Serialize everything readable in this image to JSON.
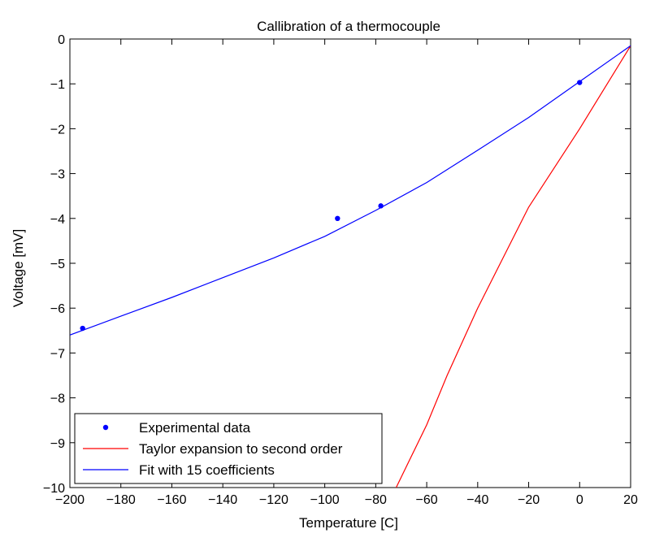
{
  "chart_data": {
    "type": "line",
    "title": "Callibration of a thermocouple",
    "xlabel": "Temperature [C]",
    "ylabel": "Voltage [mV]",
    "xlim": [
      -200,
      20
    ],
    "ylim": [
      -10,
      0
    ],
    "xticks": [
      -200,
      -180,
      -160,
      -140,
      -120,
      -100,
      -80,
      -60,
      -40,
      -20,
      0,
      20
    ],
    "yticks": [
      0,
      -1,
      -2,
      -3,
      -4,
      -5,
      -6,
      -7,
      -8,
      -9,
      -10
    ],
    "grid": false,
    "legend_position": "bottom-left",
    "series": [
      {
        "name": "Experimental data",
        "kind": "scatter",
        "color": "#0000ff",
        "x": [
          -195,
          -95,
          -78,
          0
        ],
        "y": [
          -6.45,
          -4.0,
          -3.72,
          -0.97
        ]
      },
      {
        "name": "Taylor expansion to second order",
        "kind": "line",
        "color": "#ff0000",
        "x": [
          -72,
          -60,
          -52,
          -40,
          -20,
          0,
          20
        ],
        "y": [
          -10.0,
          -8.6,
          -7.5,
          -6.0,
          -3.75,
          -2.0,
          -0.15
        ]
      },
      {
        "name": "Fit with 15 coefficients",
        "kind": "line",
        "color": "#0000ff",
        "x": [
          -200,
          -180,
          -160,
          -140,
          -120,
          -100,
          -80,
          -60,
          -40,
          -20,
          0,
          20
        ],
        "y": [
          -6.6,
          -6.18,
          -5.76,
          -5.32,
          -4.88,
          -4.4,
          -3.82,
          -3.2,
          -2.48,
          -1.75,
          -0.95,
          -0.15
        ]
      }
    ]
  }
}
